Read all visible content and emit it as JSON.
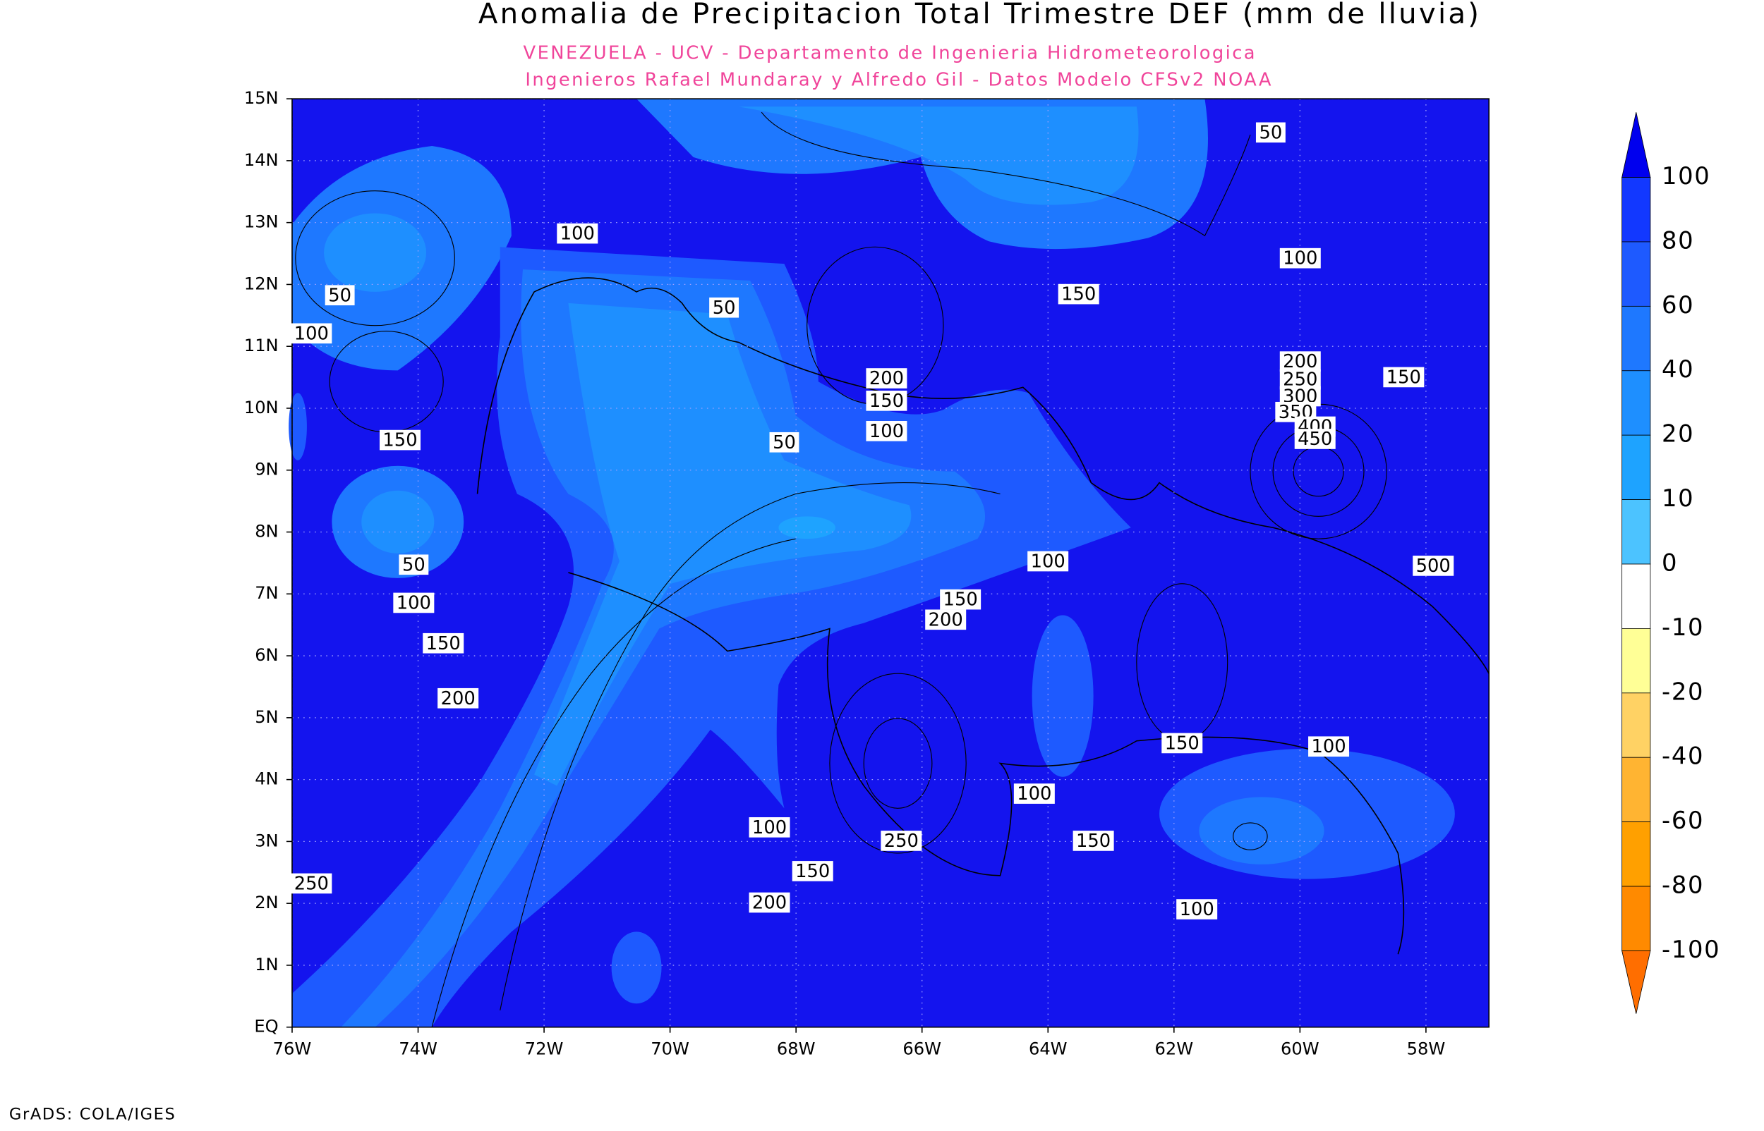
{
  "header": {
    "title": "Anomalia de Precipitacion Total Trimestre DEF (mm de lluvia)",
    "subtitle_lines": [
      "VENEZUELA - UCV - Departamento de Ingenieria Hidrometeorologica",
      "Ingenieros Rafael Mundaray y Alfredo Gil - Datos Modelo CFSv2 NOAA"
    ]
  },
  "axes": {
    "lon_lim": [
      -76,
      -57
    ],
    "lat_lim": [
      0,
      15
    ],
    "lat_ticks": [
      {
        "value": 15,
        "label": "15N"
      },
      {
        "value": 14,
        "label": "14N"
      },
      {
        "value": 13,
        "label": "13N"
      },
      {
        "value": 12,
        "label": "12N"
      },
      {
        "value": 11,
        "label": "11N"
      },
      {
        "value": 10,
        "label": "10N"
      },
      {
        "value": 9,
        "label": "9N"
      },
      {
        "value": 8,
        "label": "8N"
      },
      {
        "value": 7,
        "label": "7N"
      },
      {
        "value": 6,
        "label": "6N"
      },
      {
        "value": 5,
        "label": "5N"
      },
      {
        "value": 4,
        "label": "4N"
      },
      {
        "value": 3,
        "label": "3N"
      },
      {
        "value": 2,
        "label": "2N"
      },
      {
        "value": 1,
        "label": "1N"
      },
      {
        "value": 0,
        "label": "EQ"
      }
    ],
    "lon_ticks": [
      {
        "value": -76,
        "label": "76W"
      },
      {
        "value": -74,
        "label": "74W"
      },
      {
        "value": -72,
        "label": "72W"
      },
      {
        "value": -70,
        "label": "70W"
      },
      {
        "value": -68,
        "label": "68W"
      },
      {
        "value": -66,
        "label": "66W"
      },
      {
        "value": -64,
        "label": "64W"
      },
      {
        "value": -62,
        "label": "62W"
      },
      {
        "value": -60,
        "label": "60W"
      },
      {
        "value": -58,
        "label": "58W"
      }
    ],
    "grid": true
  },
  "colorbar": {
    "levels": [
      100,
      80,
      60,
      40,
      20,
      10,
      0,
      -10,
      -20,
      -40,
      -60,
      -80,
      -100
    ],
    "colors": [
      "#0000ee",
      "#1238ff",
      "#1e5aff",
      "#1e78ff",
      "#1e8fff",
      "#1ea3ff",
      "#4cc3ff",
      "#ffffff",
      "#ffff96",
      "#ffd264",
      "#ffb432",
      "#ffa000",
      "#ff8a00",
      "#ff6e00"
    ]
  },
  "contour_labels": [
    50,
    100,
    100,
    50,
    150,
    50,
    100,
    200,
    150,
    200,
    250,
    300,
    350,
    400,
    450,
    150,
    100,
    150,
    50,
    100,
    500,
    50,
    150,
    100,
    200,
    150,
    200,
    150,
    100,
    100,
    100,
    250,
    150,
    150,
    250,
    200,
    100
  ],
  "footer": "GrADS: COLA/IGES"
}
